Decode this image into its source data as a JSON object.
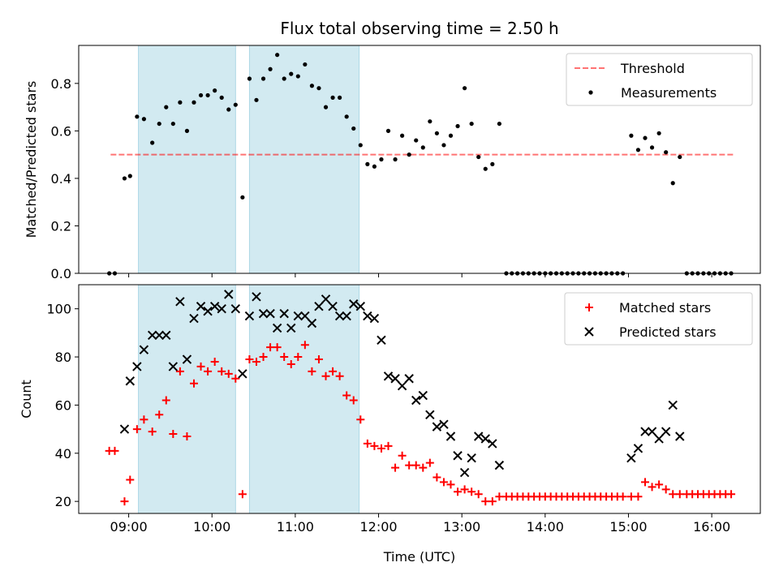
{
  "chart_data": [
    {
      "type": "scatter",
      "title": "Flux total observing time = 2.50 h",
      "xlabel": "",
      "ylabel": "Matched/Predicted stars",
      "xlim": [
        "08:24",
        "16:35"
      ],
      "ylim": [
        0,
        0.96
      ],
      "x_ticks": [
        "09:00",
        "10:00",
        "11:00",
        "12:00",
        "13:00",
        "14:00",
        "15:00",
        "16:00"
      ],
      "y_ticks": [
        "0.0",
        "0.2",
        "0.4",
        "0.6",
        "0.8"
      ],
      "grid": false,
      "legend": "top-right",
      "shaded_intervals": [
        {
          "start": "09:07",
          "end": "10:17"
        },
        {
          "start": "10:27",
          "end": "11:46"
        }
      ],
      "threshold": {
        "name": "Threshold",
        "value": 0.5,
        "x_start": "08:47",
        "x_end": "16:17"
      },
      "series": [
        {
          "name": "Measurements",
          "points": [
            [
              "08:46",
              0
            ],
            [
              "08:50",
              0
            ],
            [
              "08:57",
              0.4
            ],
            [
              "09:01",
              0.41
            ],
            [
              "09:06",
              0.66
            ],
            [
              "09:11",
              0.65
            ],
            [
              "09:17",
              0.55
            ],
            [
              "09:22",
              0.63
            ],
            [
              "09:27",
              0.7
            ],
            [
              "09:32",
              0.63
            ],
            [
              "09:37",
              0.72
            ],
            [
              "09:42",
              0.6
            ],
            [
              "09:47",
              0.72
            ],
            [
              "09:52",
              0.75
            ],
            [
              "09:57",
              0.75
            ],
            [
              "10:02",
              0.77
            ],
            [
              "10:07",
              0.74
            ],
            [
              "10:12",
              0.69
            ],
            [
              "10:17",
              0.71
            ],
            [
              "10:22",
              0.32
            ],
            [
              "10:27",
              0.82
            ],
            [
              "10:32",
              0.73
            ],
            [
              "10:37",
              0.82
            ],
            [
              "10:42",
              0.86
            ],
            [
              "10:47",
              0.92
            ],
            [
              "10:52",
              0.82
            ],
            [
              "10:57",
              0.84
            ],
            [
              "11:02",
              0.83
            ],
            [
              "11:07",
              0.88
            ],
            [
              "11:12",
              0.79
            ],
            [
              "11:17",
              0.78
            ],
            [
              "11:22",
              0.7
            ],
            [
              "11:27",
              0.74
            ],
            [
              "11:32",
              0.74
            ],
            [
              "11:37",
              0.66
            ],
            [
              "11:42",
              0.61
            ],
            [
              "11:47",
              0.54
            ],
            [
              "11:52",
              0.46
            ],
            [
              "11:57",
              0.45
            ],
            [
              "12:02",
              0.48
            ],
            [
              "12:07",
              0.6
            ],
            [
              "12:12",
              0.48
            ],
            [
              "12:17",
              0.58
            ],
            [
              "12:22",
              0.5
            ],
            [
              "12:27",
              0.56
            ],
            [
              "12:32",
              0.53
            ],
            [
              "12:37",
              0.64
            ],
            [
              "12:42",
              0.59
            ],
            [
              "12:47",
              0.54
            ],
            [
              "12:52",
              0.58
            ],
            [
              "12:57",
              0.62
            ],
            [
              "13:02",
              0.78
            ],
            [
              "13:07",
              0.63
            ],
            [
              "13:12",
              0.49
            ],
            [
              "13:17",
              0.44
            ],
            [
              "13:22",
              0.46
            ],
            [
              "13:27",
              0.63
            ],
            [
              "13:32",
              0
            ],
            [
              "13:36",
              0
            ],
            [
              "13:40",
              0
            ],
            [
              "13:44",
              0
            ],
            [
              "13:48",
              0
            ],
            [
              "13:52",
              0
            ],
            [
              "13:56",
              0
            ],
            [
              "14:00",
              0
            ],
            [
              "14:04",
              0
            ],
            [
              "14:08",
              0
            ],
            [
              "14:12",
              0
            ],
            [
              "14:16",
              0
            ],
            [
              "14:20",
              0
            ],
            [
              "14:24",
              0
            ],
            [
              "14:28",
              0
            ],
            [
              "14:32",
              0
            ],
            [
              "14:36",
              0
            ],
            [
              "14:40",
              0
            ],
            [
              "14:44",
              0
            ],
            [
              "14:48",
              0
            ],
            [
              "14:52",
              0
            ],
            [
              "14:56",
              0
            ],
            [
              "15:02",
              0.58
            ],
            [
              "15:07",
              0.52
            ],
            [
              "15:12",
              0.57
            ],
            [
              "15:17",
              0.53
            ],
            [
              "15:22",
              0.59
            ],
            [
              "15:27",
              0.51
            ],
            [
              "15:32",
              0.38
            ],
            [
              "15:37",
              0.49
            ],
            [
              "15:42",
              0
            ],
            [
              "15:46",
              0
            ],
            [
              "15:50",
              0
            ],
            [
              "15:54",
              0
            ],
            [
              "15:58",
              0
            ],
            [
              "16:02",
              0
            ],
            [
              "16:06",
              0
            ],
            [
              "16:10",
              0
            ],
            [
              "16:14",
              0
            ]
          ]
        }
      ]
    },
    {
      "type": "scatter",
      "title": "",
      "xlabel": "Time (UTC)",
      "ylabel": "Count",
      "xlim": [
        "08:24",
        "16:35"
      ],
      "ylim": [
        15,
        110
      ],
      "x_ticks": [
        "09:00",
        "10:00",
        "11:00",
        "12:00",
        "13:00",
        "14:00",
        "15:00",
        "16:00"
      ],
      "y_ticks": [
        "20",
        "40",
        "60",
        "80",
        "100"
      ],
      "grid": false,
      "legend": "top-right",
      "shaded_intervals": [
        {
          "start": "09:07",
          "end": "10:17"
        },
        {
          "start": "10:27",
          "end": "11:46"
        }
      ],
      "series": [
        {
          "name": "Matched stars",
          "points": [
            [
              "08:46",
              41
            ],
            [
              "08:50",
              41
            ],
            [
              "08:57",
              20
            ],
            [
              "09:01",
              29
            ],
            [
              "09:06",
              50
            ],
            [
              "09:11",
              54
            ],
            [
              "09:17",
              49
            ],
            [
              "09:22",
              56
            ],
            [
              "09:27",
              62
            ],
            [
              "09:32",
              48
            ],
            [
              "09:37",
              74
            ],
            [
              "09:42",
              47
            ],
            [
              "09:47",
              69
            ],
            [
              "09:52",
              76
            ],
            [
              "09:57",
              74
            ],
            [
              "10:02",
              78
            ],
            [
              "10:07",
              74
            ],
            [
              "10:12",
              73
            ],
            [
              "10:17",
              71
            ],
            [
              "10:22",
              23
            ],
            [
              "10:27",
              79
            ],
            [
              "10:32",
              78
            ],
            [
              "10:37",
              80
            ],
            [
              "10:42",
              84
            ],
            [
              "10:47",
              84
            ],
            [
              "10:52",
              80
            ],
            [
              "10:57",
              77
            ],
            [
              "11:02",
              80
            ],
            [
              "11:07",
              85
            ],
            [
              "11:12",
              74
            ],
            [
              "11:17",
              79
            ],
            [
              "11:22",
              72
            ],
            [
              "11:27",
              74
            ],
            [
              "11:32",
              72
            ],
            [
              "11:37",
              64
            ],
            [
              "11:42",
              62
            ],
            [
              "11:47",
              54
            ],
            [
              "11:52",
              44
            ],
            [
              "11:57",
              43
            ],
            [
              "12:02",
              42
            ],
            [
              "12:07",
              43
            ],
            [
              "12:12",
              34
            ],
            [
              "12:17",
              39
            ],
            [
              "12:22",
              35
            ],
            [
              "12:27",
              35
            ],
            [
              "12:32",
              34
            ],
            [
              "12:37",
              36
            ],
            [
              "12:42",
              30
            ],
            [
              "12:47",
              28
            ],
            [
              "12:52",
              27
            ],
            [
              "12:57",
              24
            ],
            [
              "13:02",
              25
            ],
            [
              "13:07",
              24
            ],
            [
              "13:12",
              23
            ],
            [
              "13:17",
              20
            ],
            [
              "13:22",
              20
            ],
            [
              "13:27",
              22
            ],
            [
              "13:32",
              22
            ],
            [
              "13:36",
              22
            ],
            [
              "13:40",
              22
            ],
            [
              "13:44",
              22
            ],
            [
              "13:48",
              22
            ],
            [
              "13:52",
              22
            ],
            [
              "13:56",
              22
            ],
            [
              "14:00",
              22
            ],
            [
              "14:04",
              22
            ],
            [
              "14:08",
              22
            ],
            [
              "14:12",
              22
            ],
            [
              "14:16",
              22
            ],
            [
              "14:20",
              22
            ],
            [
              "14:24",
              22
            ],
            [
              "14:28",
              22
            ],
            [
              "14:32",
              22
            ],
            [
              "14:36",
              22
            ],
            [
              "14:40",
              22
            ],
            [
              "14:44",
              22
            ],
            [
              "14:48",
              22
            ],
            [
              "14:52",
              22
            ],
            [
              "14:56",
              22
            ],
            [
              "15:02",
              22
            ],
            [
              "15:07",
              22
            ],
            [
              "15:12",
              28
            ],
            [
              "15:17",
              26
            ],
            [
              "15:22",
              27
            ],
            [
              "15:27",
              25
            ],
            [
              "15:32",
              23
            ],
            [
              "15:37",
              23
            ],
            [
              "15:42",
              23
            ],
            [
              "15:46",
              23
            ],
            [
              "15:50",
              23
            ],
            [
              "15:54",
              23
            ],
            [
              "15:58",
              23
            ],
            [
              "16:02",
              23
            ],
            [
              "16:06",
              23
            ],
            [
              "16:10",
              23
            ],
            [
              "16:14",
              23
            ]
          ]
        },
        {
          "name": "Predicted stars",
          "points": [
            [
              "08:57",
              50
            ],
            [
              "09:01",
              70
            ],
            [
              "09:06",
              76
            ],
            [
              "09:11",
              83
            ],
            [
              "09:17",
              89
            ],
            [
              "09:22",
              89
            ],
            [
              "09:27",
              89
            ],
            [
              "09:32",
              76
            ],
            [
              "09:37",
              103
            ],
            [
              "09:42",
              79
            ],
            [
              "09:47",
              96
            ],
            [
              "09:52",
              101
            ],
            [
              "09:57",
              99
            ],
            [
              "10:02",
              101
            ],
            [
              "10:07",
              100
            ],
            [
              "10:12",
              106
            ],
            [
              "10:17",
              100
            ],
            [
              "10:22",
              73
            ],
            [
              "10:27",
              97
            ],
            [
              "10:32",
              105
            ],
            [
              "10:37",
              98
            ],
            [
              "10:42",
              98
            ],
            [
              "10:47",
              92
            ],
            [
              "10:52",
              98
            ],
            [
              "10:57",
              92
            ],
            [
              "11:02",
              97
            ],
            [
              "11:07",
              97
            ],
            [
              "11:12",
              94
            ],
            [
              "11:17",
              101
            ],
            [
              "11:22",
              104
            ],
            [
              "11:27",
              101
            ],
            [
              "11:32",
              97
            ],
            [
              "11:37",
              97
            ],
            [
              "11:42",
              102
            ],
            [
              "11:47",
              101
            ],
            [
              "11:52",
              97
            ],
            [
              "11:57",
              96
            ],
            [
              "12:02",
              87
            ],
            [
              "12:07",
              72
            ],
            [
              "12:12",
              71
            ],
            [
              "12:17",
              68
            ],
            [
              "12:22",
              71
            ],
            [
              "12:27",
              62
            ],
            [
              "12:32",
              64
            ],
            [
              "12:37",
              56
            ],
            [
              "12:42",
              51
            ],
            [
              "12:47",
              52
            ],
            [
              "12:52",
              47
            ],
            [
              "12:57",
              39
            ],
            [
              "13:02",
              32
            ],
            [
              "13:07",
              38
            ],
            [
              "13:12",
              47
            ],
            [
              "13:17",
              46
            ],
            [
              "13:22",
              44
            ],
            [
              "13:27",
              35
            ],
            [
              "15:02",
              38
            ],
            [
              "15:07",
              42
            ],
            [
              "15:12",
              49
            ],
            [
              "15:17",
              49
            ],
            [
              "15:22",
              46
            ],
            [
              "15:27",
              49
            ],
            [
              "15:32",
              60
            ],
            [
              "15:37",
              47
            ]
          ]
        }
      ]
    }
  ],
  "colors": {
    "shade": "#add8e6",
    "threshold": "#ff0000",
    "measurements": "#000000",
    "matched": "#ff0000",
    "predicted": "#000000"
  }
}
